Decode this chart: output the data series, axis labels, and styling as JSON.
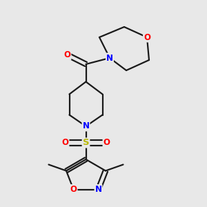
{
  "bg_color": "#e8e8e8",
  "line_color": "#1a1a1a",
  "bond_width": 1.6,
  "atom_colors": {
    "N": "#0000ff",
    "O": "#ff0000",
    "S": "#b8b800",
    "C": "#1a1a1a"
  },
  "font_size": 8.5,
  "figsize": [
    3.0,
    3.0
  ],
  "dpi": 100,
  "xlim": [
    0,
    10
  ],
  "ylim": [
    0,
    10
  ]
}
